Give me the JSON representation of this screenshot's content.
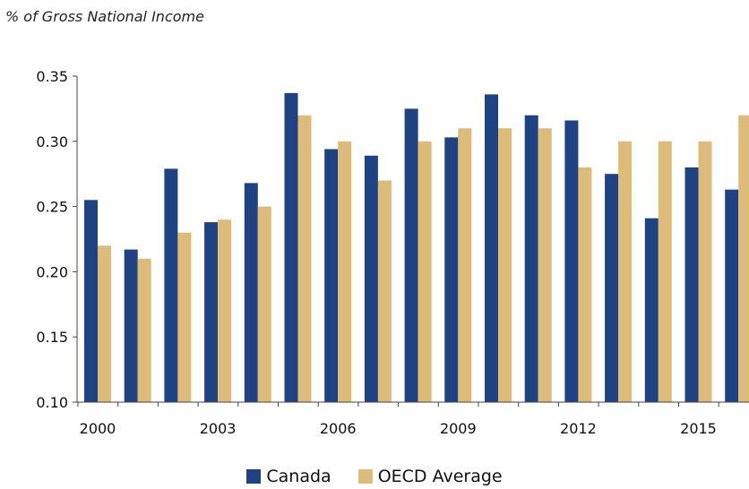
{
  "chart_data": {
    "type": "bar",
    "ylabel": "% of Gross National Income",
    "xlabel": "",
    "ylim": [
      0.1,
      0.35
    ],
    "yticks": [
      "0.10",
      "0.15",
      "0.20",
      "0.25",
      "0.30",
      "0.35"
    ],
    "x": [
      2000,
      2001,
      2002,
      2003,
      2004,
      2005,
      2006,
      2007,
      2008,
      2009,
      2010,
      2011,
      2012,
      2013,
      2014,
      2015,
      2016
    ],
    "xtick_labels": [
      "2000",
      "2003",
      "2006",
      "2009",
      "2012",
      "2015"
    ],
    "series": [
      {
        "name": "Canada",
        "color": "#1f4283",
        "values": [
          0.255,
          0.217,
          0.279,
          0.238,
          0.268,
          0.337,
          0.294,
          0.289,
          0.325,
          0.303,
          0.336,
          0.32,
          0.316,
          0.275,
          0.241,
          0.28,
          0.263
        ]
      },
      {
        "name": "OECD Average",
        "color": "#dcbc78",
        "values": [
          0.22,
          0.21,
          0.23,
          0.24,
          0.25,
          0.32,
          0.3,
          0.27,
          0.3,
          0.31,
          0.31,
          0.31,
          0.28,
          0.3,
          0.3,
          0.3,
          0.32
        ]
      }
    ],
    "legend_position": "bottom",
    "grid": false
  }
}
